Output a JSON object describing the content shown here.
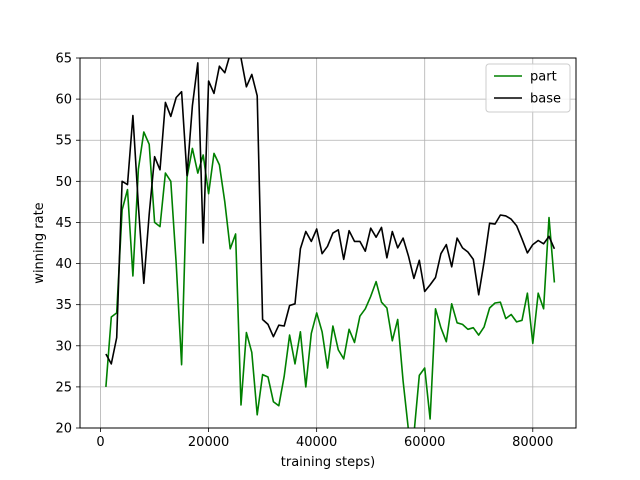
{
  "chart_data": {
    "type": "line",
    "title": "",
    "xlabel": "training steps)",
    "ylabel": "winning rate",
    "xlim": [
      -3800,
      88000
    ],
    "ylim": [
      20,
      65
    ],
    "xticks": [
      0,
      20000,
      40000,
      60000,
      80000
    ],
    "xtick_labels": [
      "0",
      "20000",
      "40000",
      "60000",
      "80000"
    ],
    "yticks": [
      20,
      25,
      30,
      35,
      40,
      45,
      50,
      55,
      60,
      65
    ],
    "ytick_labels": [
      "20",
      "25",
      "30",
      "35",
      "40",
      "45",
      "50",
      "55",
      "60",
      "65"
    ],
    "grid": true,
    "legend_position": "upper right",
    "series": [
      {
        "name": "part",
        "color": "#008000",
        "x": [
          1000,
          2000,
          3000,
          4000,
          5000,
          6000,
          7000,
          8000,
          9000,
          10000,
          11000,
          12000,
          13000,
          14000,
          15000,
          16000,
          17000,
          18000,
          19000,
          20000,
          21000,
          22000,
          23000,
          24000,
          25000,
          26000,
          27000,
          28000,
          29000,
          30000,
          31000,
          32000,
          33000,
          34000,
          35000,
          36000,
          37000,
          38000,
          39000,
          40000,
          41000,
          42000,
          43000,
          44000,
          45000,
          46000,
          47000,
          48000,
          49000,
          50000,
          51000,
          52000,
          53000,
          54000,
          55000,
          56000,
          57000,
          58000,
          59000,
          60000,
          61000,
          62000,
          63000,
          64000,
          65000,
          66000,
          67000,
          68000,
          69000,
          70000,
          71000,
          72000,
          73000,
          74000,
          75000,
          76000,
          77000,
          78000,
          79000,
          80000,
          81000,
          82000,
          83000,
          84000
        ],
        "y": [
          25,
          33.5,
          34,
          46.5,
          49,
          38.5,
          51.5,
          56,
          54.5,
          45,
          44.5,
          51,
          50,
          40,
          27.7,
          50.5,
          54,
          51,
          53.2,
          48.5,
          53.4,
          52,
          47.5,
          41.8,
          43.6,
          22.8,
          31.6,
          29.2,
          21.6,
          26.5,
          26.2,
          23.2,
          22.7,
          26.3,
          31.3,
          27.8,
          31.7,
          25,
          31.5,
          34,
          31.7,
          27.3,
          32.4,
          29.5,
          28.4,
          32,
          30.4,
          33.6,
          34.5,
          36,
          37.8,
          35.3,
          34.6,
          30.6,
          33.2,
          25.7,
          19.7,
          19.2,
          26.4,
          27.3,
          21.1,
          34.5,
          32.2,
          30.5,
          35.1,
          32.8,
          32.6,
          32,
          32.2,
          31.3,
          32.3,
          34.6,
          35.2,
          35.3,
          33.3,
          33.8,
          32.9,
          33.1,
          36.4,
          30.3,
          36.4,
          34.5,
          45.6,
          37.7
        ]
      },
      {
        "name": "base",
        "color": "#000000",
        "x": [
          1000,
          2000,
          3000,
          4000,
          5000,
          6000,
          7000,
          8000,
          9000,
          10000,
          11000,
          12000,
          13000,
          14000,
          15000,
          16000,
          17000,
          18000,
          19000,
          20000,
          21000,
          22000,
          23000,
          24000,
          25000,
          26000,
          27000,
          28000,
          29000,
          30000,
          31000,
          32000,
          33000,
          34000,
          35000,
          36000,
          37000,
          38000,
          39000,
          40000,
          41000,
          42000,
          43000,
          44000,
          45000,
          46000,
          47000,
          48000,
          49000,
          50000,
          51000,
          52000,
          53000,
          54000,
          55000,
          56000,
          57000,
          58000,
          59000,
          60000,
          61000,
          62000,
          63000,
          64000,
          65000,
          66000,
          67000,
          68000,
          69000,
          70000,
          71000,
          72000,
          73000,
          74000,
          75000,
          76000,
          77000,
          78000,
          79000,
          80000,
          81000,
          82000,
          83000,
          84000
        ],
        "y": [
          29,
          27.8,
          31,
          50,
          49.6,
          58,
          47,
          37.6,
          46,
          53,
          51.4,
          59.6,
          57.9,
          60.2,
          60.9,
          50.7,
          59.2,
          64.4,
          42.5,
          62.2,
          60.7,
          64,
          63.2,
          65.5,
          66,
          65,
          61.5,
          63,
          60.4,
          33.2,
          32.6,
          31.1,
          32.5,
          32.4,
          34.9,
          35.1,
          41.8,
          43.9,
          42.7,
          44.2,
          41.2,
          42.1,
          43.7,
          44.1,
          40.5,
          44,
          42.7,
          42.7,
          41.5,
          44.3,
          43.2,
          44.4,
          40.7,
          43.9,
          41.9,
          43.1,
          40.9,
          38.2,
          40.4,
          36.6,
          37.4,
          38.3,
          41.2,
          42.3,
          39.6,
          43.1,
          41.9,
          41.4,
          40.5,
          36.2,
          40.2,
          44.9,
          44.8,
          45.9,
          45.8,
          45.4,
          44.6,
          43,
          41.3,
          42.3,
          42.8,
          42.4,
          43.3,
          41.8
        ]
      }
    ]
  }
}
